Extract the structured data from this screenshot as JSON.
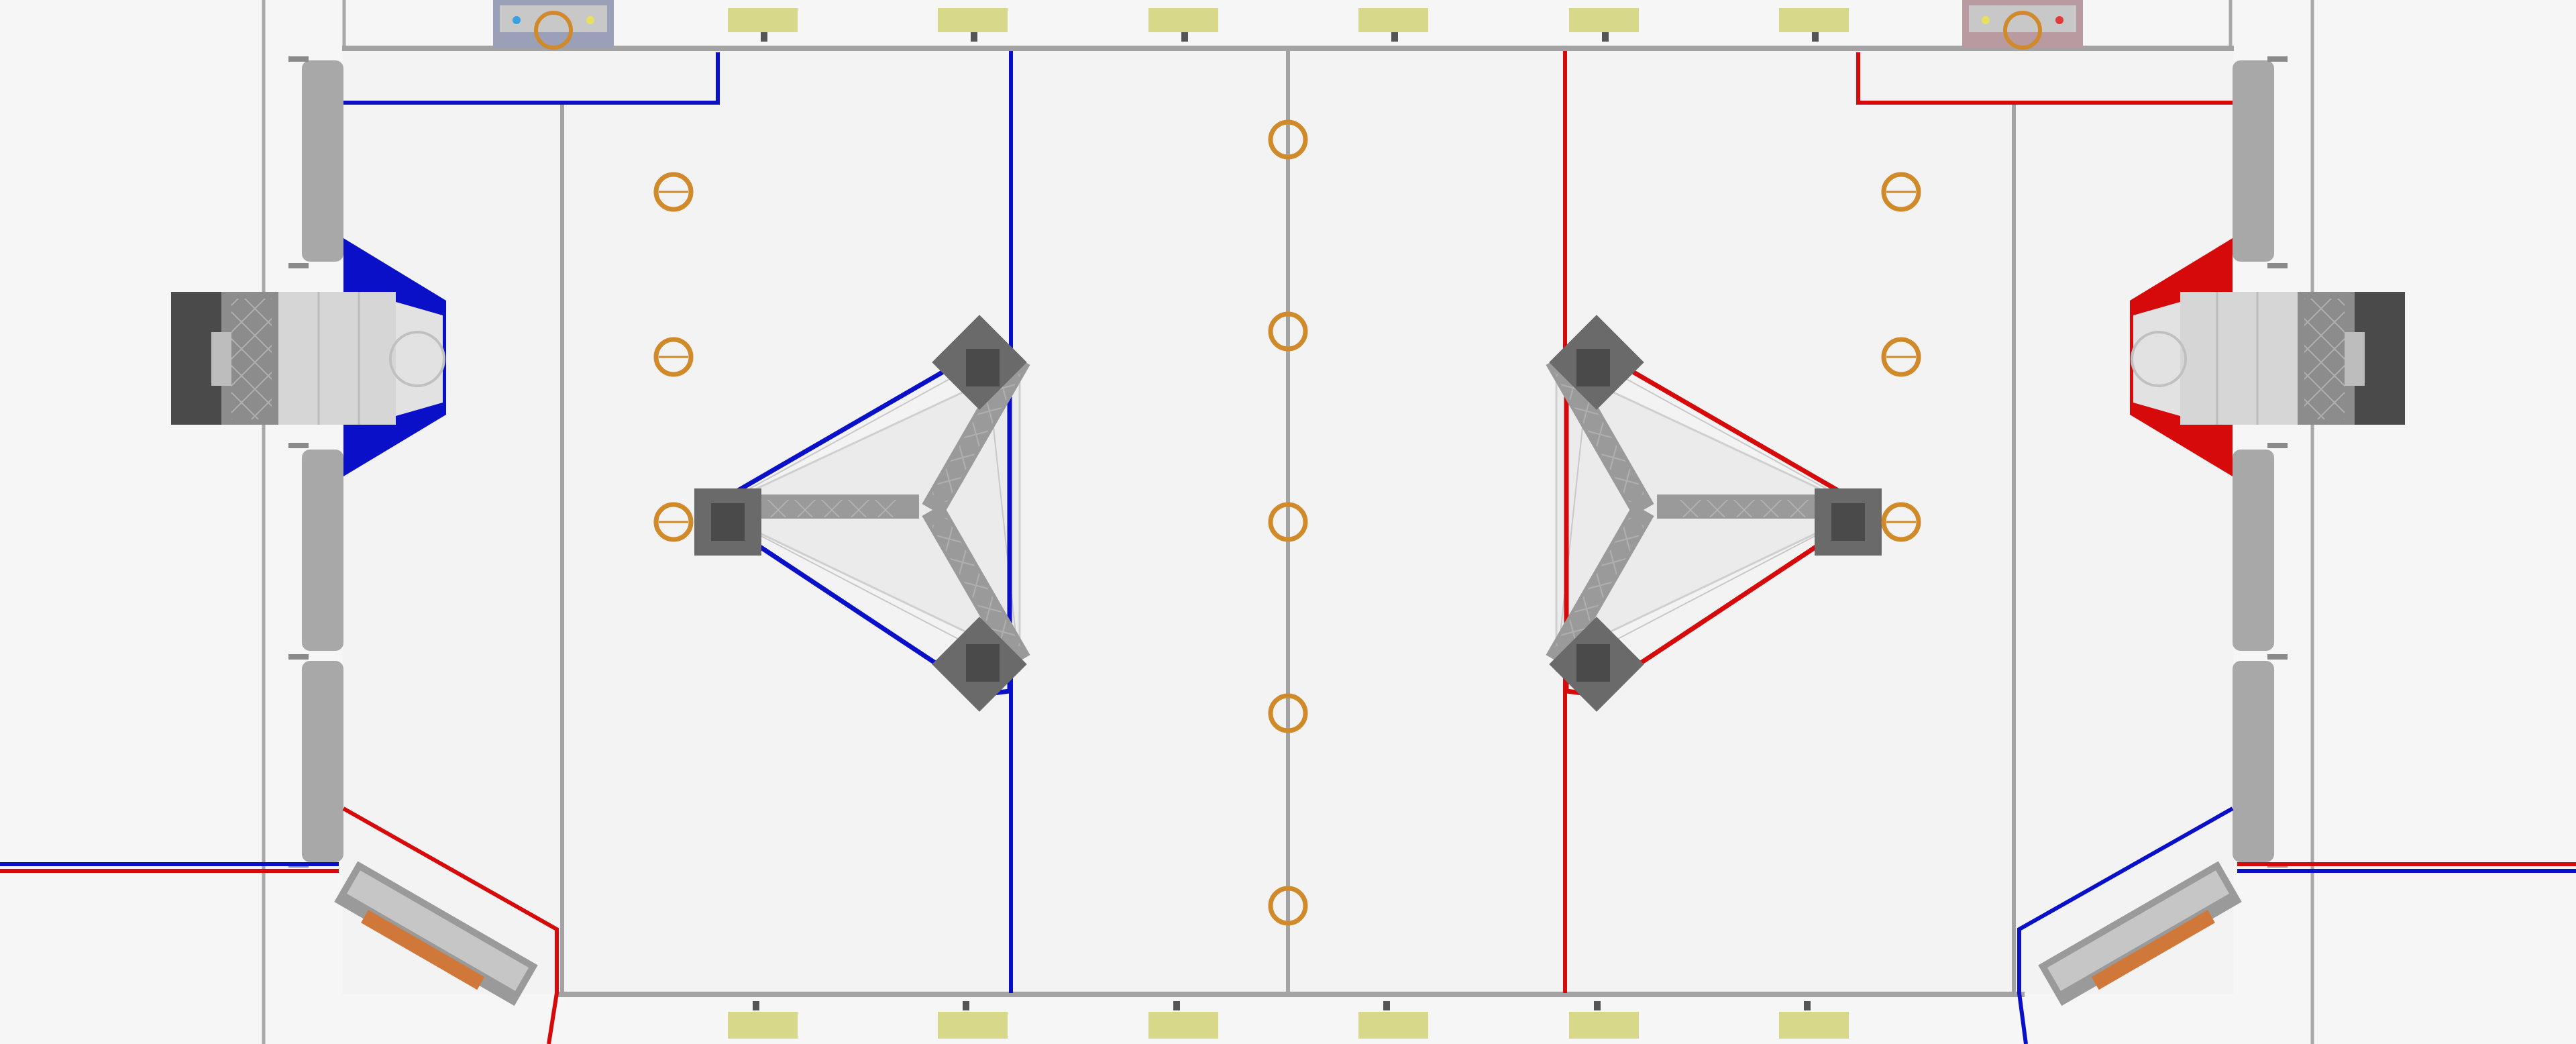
{
  "view": {
    "description_visible_text": [],
    "colors": {
      "background": "#f6f6f6",
      "carpet": "#f3f3f3",
      "wall_gray": "#a3a3a3",
      "blue_alliance": "#0a10c8",
      "red_alliance": "#d60a0a",
      "note_orange": "#d08a2a",
      "bumper_yellow": "#d8d88a",
      "structure_gray": "#8c8c8c",
      "dark_gray": "#5a5a5a",
      "light_panel": "#d6d6d6"
    }
  },
  "field": {
    "centerline_notes": 5,
    "blue_wing_notes": 3,
    "red_wing_notes": 3,
    "top_bumper_markers": 6,
    "bottom_bumper_markers": 6,
    "stages": [
      "blue-stage",
      "red-stage"
    ],
    "speakers": [
      "blue-speaker",
      "red-speaker"
    ],
    "amps": [
      "blue-amp",
      "red-amp"
    ],
    "source_chutes": [
      "blue-source",
      "red-source"
    ]
  }
}
